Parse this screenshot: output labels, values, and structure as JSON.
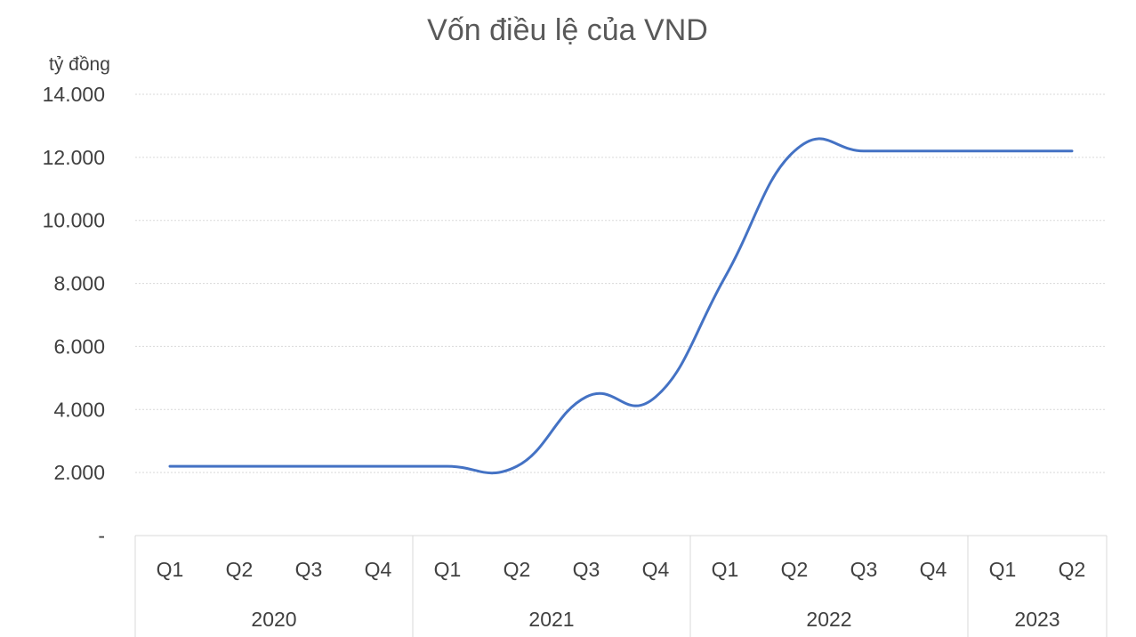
{
  "chart_data": {
    "type": "line",
    "title": "Vốn điều lệ của VND",
    "ylabel": "tỷ đồng",
    "xlabel": "",
    "ylim": [
      0,
      14000
    ],
    "y_ticks": [
      {
        "value": 0,
        "label": "-"
      },
      {
        "value": 2000,
        "label": "2.000"
      },
      {
        "value": 4000,
        "label": "4.000"
      },
      {
        "value": 6000,
        "label": "6.000"
      },
      {
        "value": 8000,
        "label": "8.000"
      },
      {
        "value": 10000,
        "label": "10.000"
      },
      {
        "value": 12000,
        "label": "12.000"
      },
      {
        "value": 14000,
        "label": "14.000"
      }
    ],
    "categories": [
      "Q1",
      "Q2",
      "Q3",
      "Q4",
      "Q1",
      "Q2",
      "Q3",
      "Q4",
      "Q1",
      "Q2",
      "Q3",
      "Q4",
      "Q1",
      "Q2"
    ],
    "year_groups": [
      {
        "label": "2020",
        "count": 4
      },
      {
        "label": "2021",
        "count": 4
      },
      {
        "label": "2022",
        "count": 4
      },
      {
        "label": "2023",
        "count": 2
      }
    ],
    "series": [
      {
        "values": [
          2200,
          2200,
          2200,
          2200,
          2200,
          2200,
          4400,
          4400,
          8200,
          12200,
          12200,
          12200,
          12200,
          12200
        ]
      }
    ],
    "line_color": "#4472c4",
    "grid": true,
    "smooth": true
  }
}
